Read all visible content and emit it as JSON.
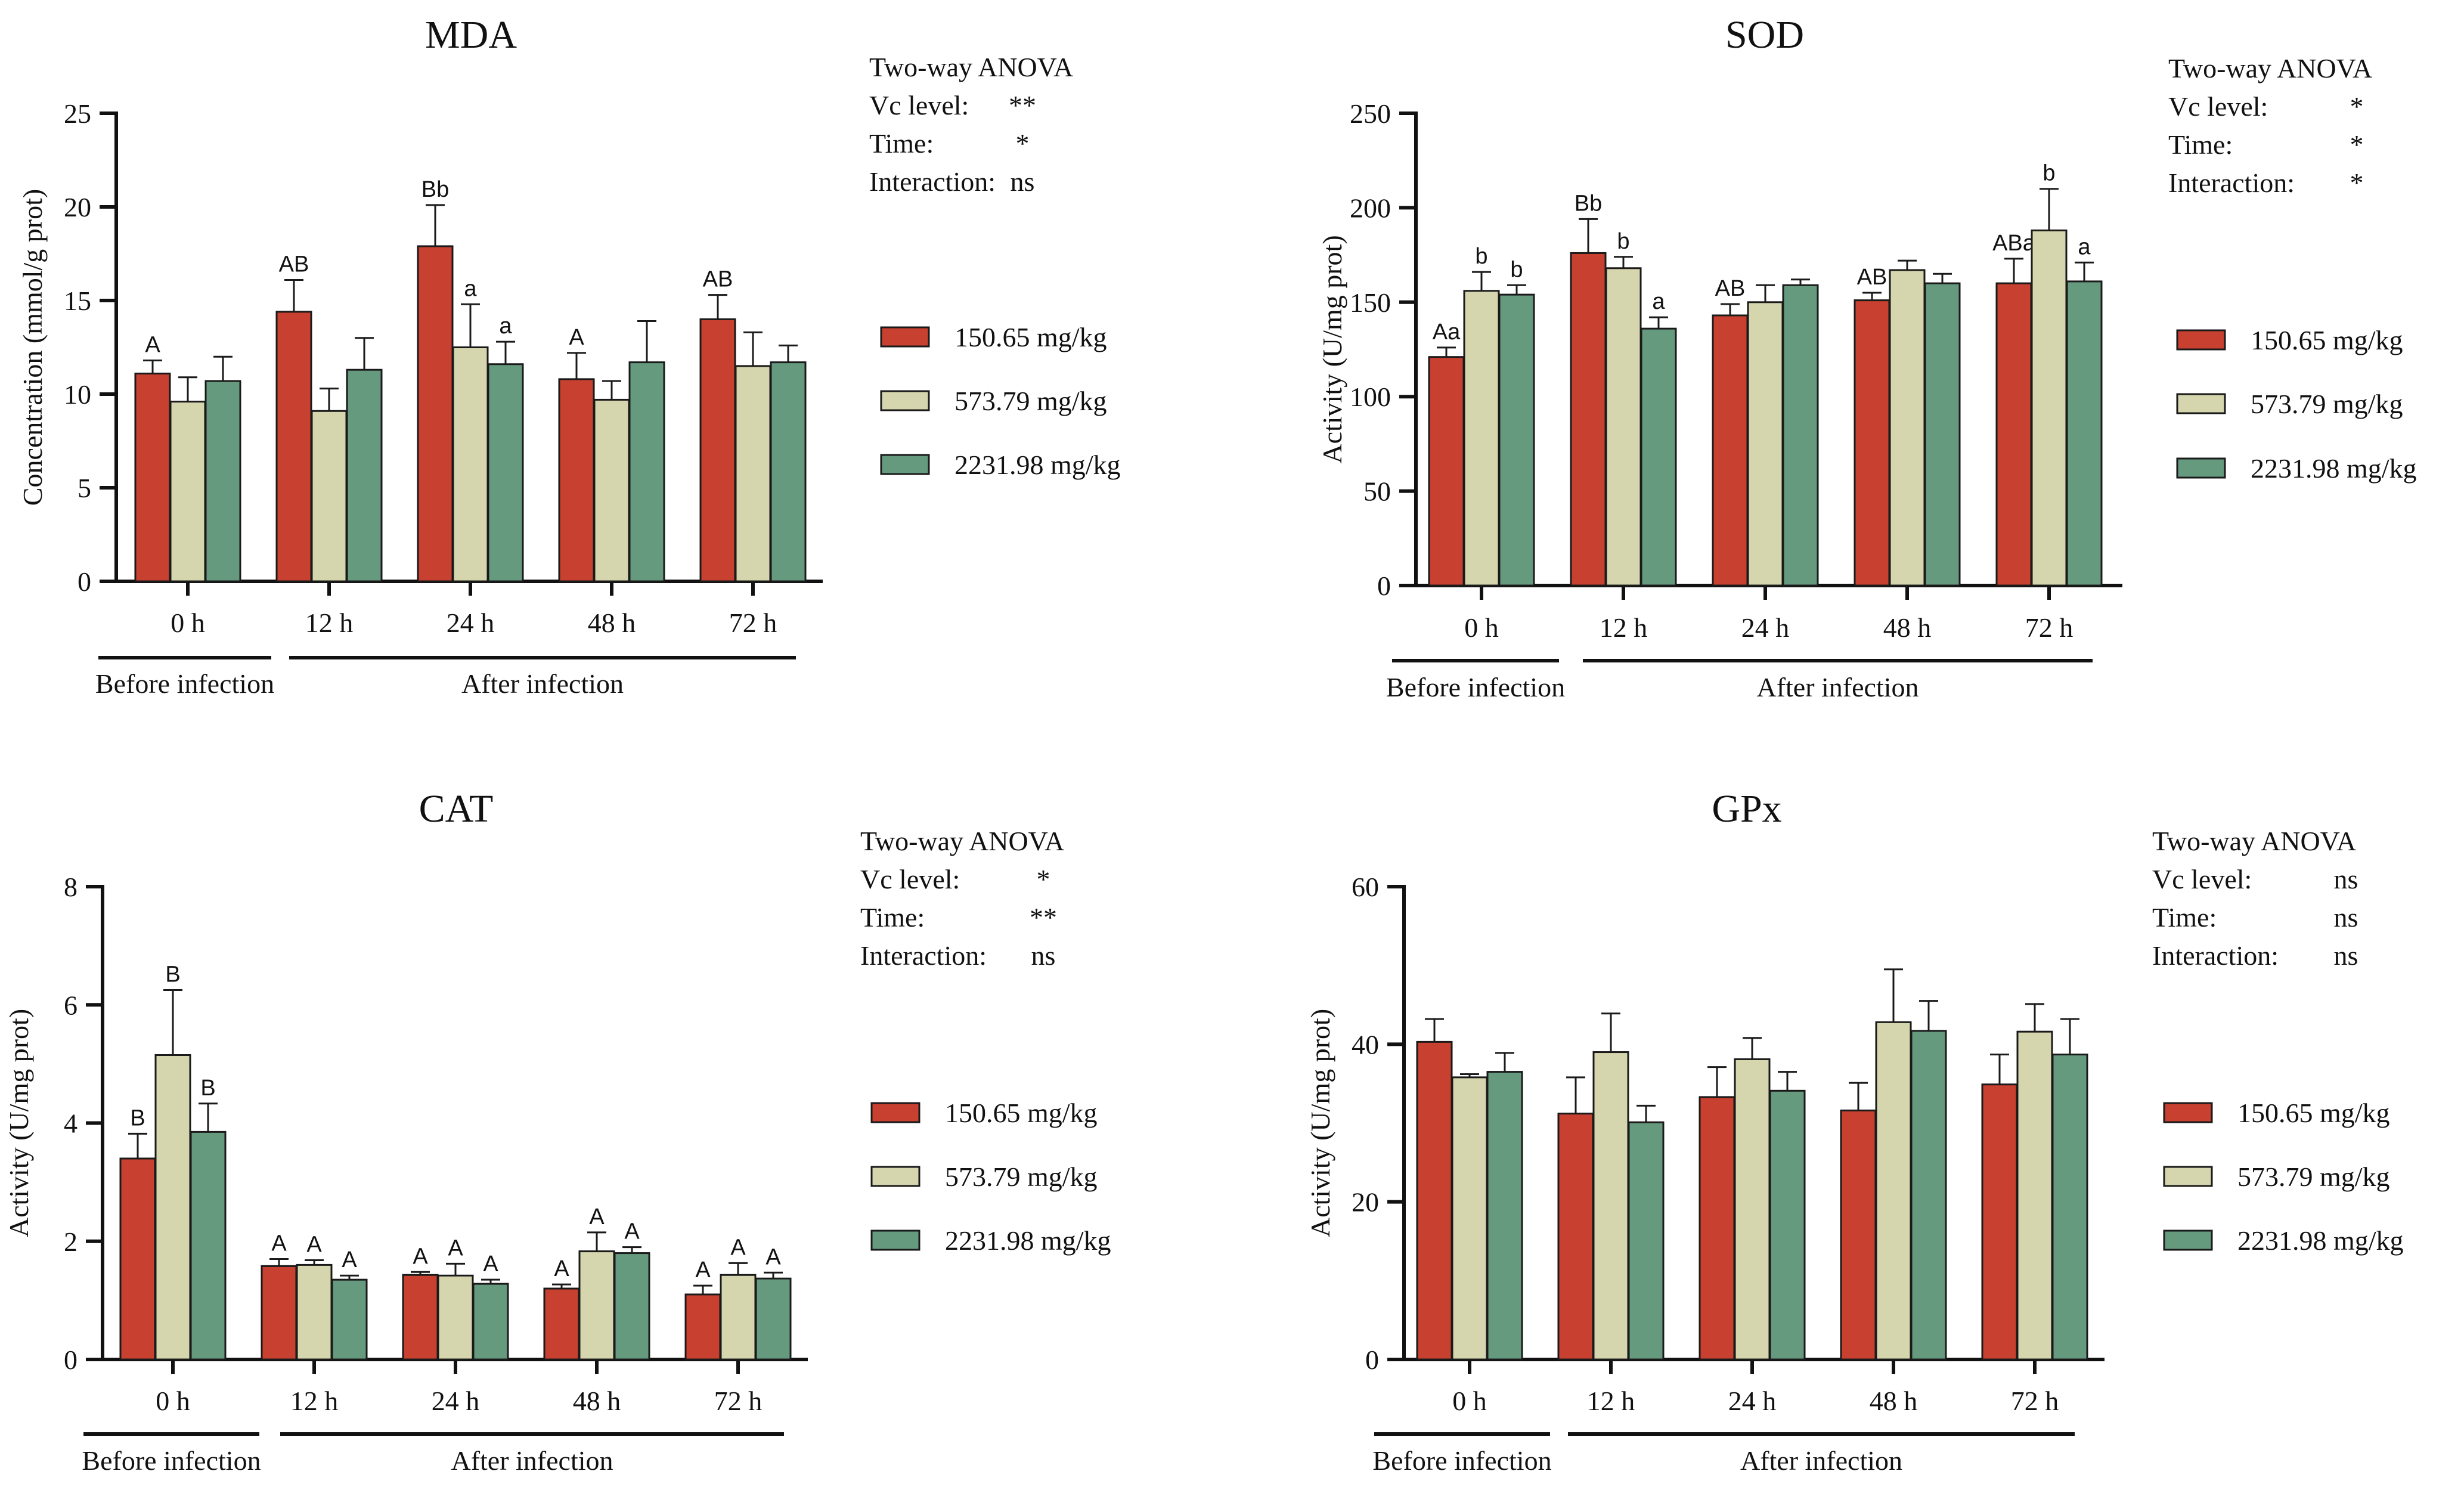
{
  "colors": {
    "series": [
      "#c8402f",
      "#d5d5ae",
      "#659a7f"
    ],
    "axis": "#111111",
    "edge": "#1a1a1a"
  },
  "chart_data": [
    {
      "type": "bar",
      "title": "MDA",
      "ylabel": "Concentration (mmol/g prot)",
      "ylim": [
        0,
        25
      ],
      "yticks": [
        0,
        5,
        10,
        15,
        20,
        25
      ],
      "categories": [
        "0 h",
        "12 h",
        "24 h",
        "48 h",
        "72 h"
      ],
      "groups": [
        {
          "label": "Before infection",
          "categories": [
            0
          ]
        },
        {
          "label": "After infection",
          "categories": [
            1,
            2,
            3,
            4
          ]
        }
      ],
      "series": [
        {
          "name": "150.65 mg/kg",
          "values": [
            11.1,
            14.4,
            17.9,
            10.8,
            14.0
          ],
          "errors": [
            0.7,
            1.7,
            2.2,
            1.4,
            1.3
          ],
          "labels": [
            "A",
            "AB",
            "Bb",
            "A",
            "AB"
          ]
        },
        {
          "name": "573.79 mg/kg",
          "values": [
            9.6,
            9.1,
            12.5,
            9.7,
            11.5
          ],
          "errors": [
            1.3,
            1.2,
            2.3,
            1.0,
            1.8
          ],
          "labels": [
            "",
            "",
            "a",
            "",
            ""
          ]
        },
        {
          "name": "2231.98 mg/kg",
          "values": [
            10.7,
            11.3,
            11.6,
            11.7,
            11.7
          ],
          "errors": [
            1.3,
            1.7,
            1.2,
            2.2,
            0.9
          ],
          "labels": [
            "",
            "",
            "a",
            "",
            ""
          ]
        }
      ],
      "anova": {
        "title": "Two-way ANOVA",
        "rows": [
          {
            "label": "Vc level:",
            "value": "**"
          },
          {
            "label": "Time:",
            "value": "*"
          },
          {
            "label": "Interaction:",
            "value": "ns"
          }
        ]
      }
    },
    {
      "type": "bar",
      "title": "SOD",
      "ylabel": "Activity (U/mg prot)",
      "ylim": [
        0,
        250
      ],
      "yticks": [
        0,
        50,
        100,
        150,
        200,
        250
      ],
      "categories": [
        "0 h",
        "12 h",
        "24 h",
        "48 h",
        "72 h"
      ],
      "groups": [
        {
          "label": "Before infection",
          "categories": [
            0
          ]
        },
        {
          "label": "After infection",
          "categories": [
            1,
            2,
            3,
            4
          ]
        }
      ],
      "series": [
        {
          "name": "150.65 mg/kg",
          "values": [
            121,
            176,
            143,
            151,
            160
          ],
          "errors": [
            5,
            18,
            6,
            4,
            13
          ],
          "labels": [
            "Aa",
            "Bb",
            "AB",
            "AB",
            "ABa"
          ]
        },
        {
          "name": "573.79 mg/kg",
          "values": [
            156,
            168,
            150,
            167,
            188
          ],
          "errors": [
            10,
            6,
            9,
            5,
            22
          ],
          "labels": [
            "b",
            "b",
            "",
            "",
            "b"
          ]
        },
        {
          "name": "2231.98 mg/kg",
          "values": [
            154,
            136,
            159,
            160,
            161
          ],
          "errors": [
            5,
            6,
            3,
            5,
            10
          ],
          "labels": [
            "b",
            "a",
            "",
            "",
            "a"
          ]
        }
      ],
      "anova": {
        "title": "Two-way ANOVA",
        "rows": [
          {
            "label": "Vc level:",
            "value": "*"
          },
          {
            "label": "Time:",
            "value": "*"
          },
          {
            "label": "Interaction:",
            "value": "*"
          }
        ]
      }
    },
    {
      "type": "bar",
      "title": "CAT",
      "ylabel": "Activity (U/mg prot)",
      "ylim": [
        0,
        8
      ],
      "yticks": [
        0,
        2,
        4,
        6,
        8
      ],
      "categories": [
        "0 h",
        "12 h",
        "24 h",
        "48 h",
        "72 h"
      ],
      "groups": [
        {
          "label": "Before infection",
          "categories": [
            0
          ]
        },
        {
          "label": "After infection",
          "categories": [
            1,
            2,
            3,
            4
          ]
        }
      ],
      "series": [
        {
          "name": "150.65 mg/kg",
          "values": [
            3.4,
            1.58,
            1.43,
            1.2,
            1.1
          ],
          "errors": [
            0.42,
            0.12,
            0.05,
            0.07,
            0.15
          ],
          "labels": [
            "B",
            "A",
            "A",
            "A",
            "A"
          ]
        },
        {
          "name": "573.79 mg/kg",
          "values": [
            5.15,
            1.6,
            1.42,
            1.83,
            1.43
          ],
          "errors": [
            1.1,
            0.08,
            0.2,
            0.32,
            0.2
          ],
          "labels": [
            "B",
            "A",
            "A",
            "A",
            "A"
          ]
        },
        {
          "name": "2231.98 mg/kg",
          "values": [
            3.85,
            1.35,
            1.28,
            1.8,
            1.37
          ],
          "errors": [
            0.48,
            0.07,
            0.07,
            0.1,
            0.1
          ],
          "labels": [
            "B",
            "A",
            "A",
            "A",
            "A"
          ]
        }
      ],
      "anova": {
        "title": "Two-way ANOVA",
        "rows": [
          {
            "label": "Vc level:",
            "value": "*"
          },
          {
            "label": "Time:",
            "value": "**"
          },
          {
            "label": "Interaction:",
            "value": "ns"
          }
        ]
      }
    },
    {
      "type": "bar",
      "title": "GPx",
      "ylabel": "Activity (U/mg prot)",
      "ylim": [
        0,
        60
      ],
      "yticks": [
        0,
        20,
        40,
        60
      ],
      "categories": [
        "0 h",
        "12 h",
        "24 h",
        "48 h",
        "72 h"
      ],
      "groups": [
        {
          "label": "Before infection",
          "categories": [
            0
          ]
        },
        {
          "label": "After infection",
          "categories": [
            1,
            2,
            3,
            4
          ]
        }
      ],
      "series": [
        {
          "name": "150.65 mg/kg",
          "values": [
            40.3,
            31.2,
            33.3,
            31.6,
            34.9
          ],
          "errors": [
            2.9,
            4.6,
            3.8,
            3.5,
            3.8
          ],
          "labels": [
            "",
            "",
            "",
            "",
            ""
          ]
        },
        {
          "name": "573.79 mg/kg",
          "values": [
            35.8,
            39,
            38.1,
            42.8,
            41.6
          ],
          "errors": [
            0.4,
            4.9,
            2.7,
            6.7,
            3.5
          ],
          "labels": [
            "",
            "",
            "",
            "",
            ""
          ]
        },
        {
          "name": "2231.98 mg/kg",
          "values": [
            36.5,
            30.1,
            34.1,
            41.7,
            38.7
          ],
          "errors": [
            2.4,
            2.1,
            2.4,
            3.8,
            4.5
          ],
          "labels": [
            "",
            "",
            "",
            "",
            ""
          ]
        }
      ],
      "anova": {
        "title": "Two-way ANOVA",
        "rows": [
          {
            "label": "Vc level:",
            "value": "ns"
          },
          {
            "label": "Time:",
            "value": "ns"
          },
          {
            "label": "Interaction:",
            "value": "ns"
          }
        ]
      }
    }
  ]
}
